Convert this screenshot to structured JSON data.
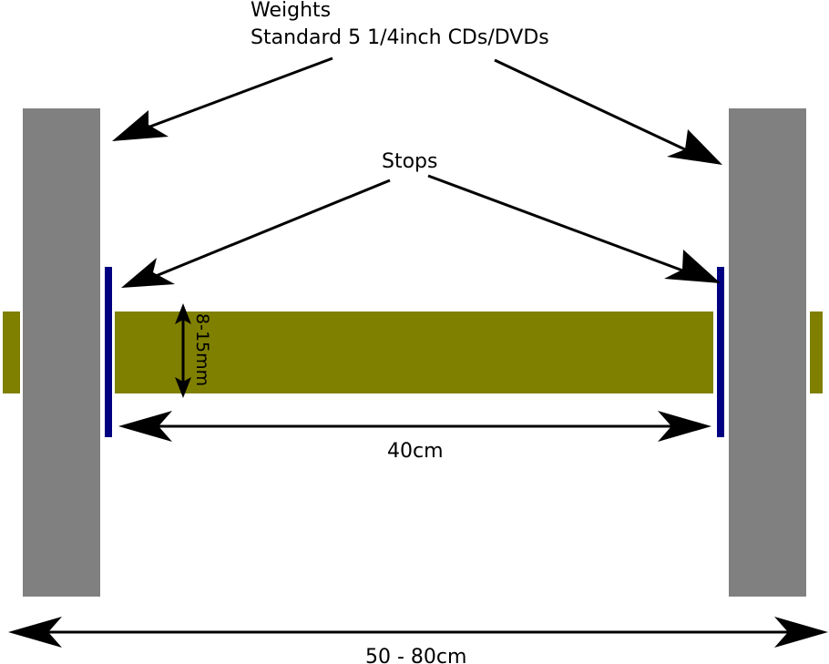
{
  "labels": {
    "weights_title": "Weights",
    "weights_desc": "Standard 5 1/4inch CDs/DVDs",
    "stops": "Stops",
    "thickness": "8-15mm",
    "inner_length": "40cm",
    "total_length": "50 - 80cm"
  },
  "colors": {
    "weight": "#808080",
    "rod": "#808000",
    "stop": "#000080",
    "arrow": "#000000",
    "background": "#ffffff"
  }
}
